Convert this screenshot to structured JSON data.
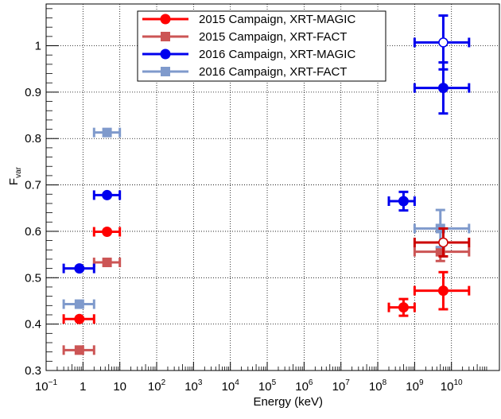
{
  "chart_data": {
    "type": "scatter",
    "xlabel": "Energy (keV)",
    "ylabel": "F",
    "ylabel_sub": "var",
    "x_scale": "log",
    "xlim": [
      0.1,
      200000000000
    ],
    "ylim": [
      0.3,
      1.09
    ],
    "grid": true,
    "legend_position": "top-center",
    "x_ticks": [
      {
        "base": "10",
        "exp": "−1",
        "value": 0.1
      },
      {
        "base": "1",
        "exp": "",
        "value": 1
      },
      {
        "base": "10",
        "exp": "",
        "value": 10
      },
      {
        "base": "10",
        "exp": "2",
        "value": 100
      },
      {
        "base": "10",
        "exp": "3",
        "value": 1000
      },
      {
        "base": "10",
        "exp": "4",
        "value": 10000
      },
      {
        "base": "10",
        "exp": "5",
        "value": 100000
      },
      {
        "base": "10",
        "exp": "6",
        "value": 1000000
      },
      {
        "base": "10",
        "exp": "7",
        "value": 10000000
      },
      {
        "base": "10",
        "exp": "8",
        "value": 100000000
      },
      {
        "base": "10",
        "exp": "9",
        "value": 1000000000
      },
      {
        "base": "10",
        "exp": "10",
        "value": 10000000000
      }
    ],
    "y_ticks": [
      {
        "label": "0.3",
        "value": 0.3
      },
      {
        "label": "0.4",
        "value": 0.4
      },
      {
        "label": "0.5",
        "value": 0.5
      },
      {
        "label": "0.6",
        "value": 0.6
      },
      {
        "label": "0.7",
        "value": 0.7
      },
      {
        "label": "0.8",
        "value": 0.8
      },
      {
        "label": "0.9",
        "value": 0.9
      },
      {
        "label": "1",
        "value": 1.0
      }
    ],
    "series": [
      {
        "name": "2015 Campaign, XRT-MAGIC",
        "color": "#ff0000",
        "marker": "circle",
        "points": [
          {
            "x": 0.8,
            "xlo": 0.3,
            "xhi": 2,
            "y": 0.411,
            "yerr": 0.006
          },
          {
            "x": 4.5,
            "xlo": 2,
            "xhi": 10,
            "y": 0.599,
            "yerr": 0.006
          },
          {
            "x": 500000000,
            "xlo": 200000000,
            "xhi": 1000000000,
            "y": 0.436,
            "yerr": 0.018
          },
          {
            "x": 6000000000,
            "xlo": 1000000000,
            "xhi": 30000000000,
            "y": 0.472,
            "yerr": 0.04
          }
        ]
      },
      {
        "name": "2015 Campaign, XRT-FACT",
        "color": "#cc5555",
        "marker": "square",
        "points": [
          {
            "x": 0.8,
            "xlo": 0.3,
            "xhi": 2,
            "y": 0.344,
            "yerr": 0.006
          },
          {
            "x": 4.5,
            "xlo": 2,
            "xhi": 10,
            "y": 0.533,
            "yerr": 0.006
          },
          {
            "x": 5000000000,
            "xlo": 1000000000,
            "xhi": 30000000000,
            "y": 0.556,
            "yerr": 0.02
          }
        ]
      },
      {
        "name": "2016 Campaign, XRT-MAGIC",
        "color": "#0000ee",
        "marker": "circle",
        "points": [
          {
            "x": 0.8,
            "xlo": 0.3,
            "xhi": 2,
            "y": 0.52,
            "yerr": 0.006
          },
          {
            "x": 4.5,
            "xlo": 2,
            "xhi": 10,
            "y": 0.678,
            "yerr": 0.006
          },
          {
            "x": 500000000,
            "xlo": 200000000,
            "xhi": 1000000000,
            "y": 0.665,
            "yerr": 0.02
          },
          {
            "x": 6000000000,
            "xlo": 1000000000,
            "xhi": 30000000000,
            "y": 0.909,
            "yerr": 0.055
          }
        ]
      },
      {
        "name": "2016 Campaign, XRT-FACT",
        "color": "#7f9acc",
        "marker": "square",
        "points": [
          {
            "x": 0.8,
            "xlo": 0.3,
            "xhi": 2,
            "y": 0.443,
            "yerr": 0.006
          },
          {
            "x": 4.5,
            "xlo": 2,
            "xhi": 10,
            "y": 0.813,
            "yerr": 0.006
          },
          {
            "x": 5000000000,
            "xlo": 1000000000,
            "xhi": 30000000000,
            "y": 0.606,
            "yerr": 0.04
          }
        ]
      },
      {
        "name": "",
        "color": "#0000ee",
        "marker": "open-circle",
        "points": [
          {
            "x": 6000000000,
            "xlo": 1000000000,
            "xhi": 30000000000,
            "y": 1.007,
            "yerr": 0.058
          }
        ]
      },
      {
        "name": "",
        "color": "#cc0000",
        "marker": "open-circle",
        "points": [
          {
            "x": 6000000000,
            "xlo": 1000000000,
            "xhi": 30000000000,
            "y": 0.576,
            "yerr": 0.03
          }
        ]
      }
    ],
    "legend": [
      {
        "label": "2015 Campaign, XRT-MAGIC",
        "color": "#ff0000",
        "marker": "circle"
      },
      {
        "label": "2015 Campaign, XRT-FACT",
        "color": "#cc5555",
        "marker": "square"
      },
      {
        "label": "2016 Campaign, XRT-MAGIC",
        "color": "#0000ee",
        "marker": "circle"
      },
      {
        "label": "2016 Campaign, XRT-FACT",
        "color": "#7f9acc",
        "marker": "square"
      }
    ]
  }
}
